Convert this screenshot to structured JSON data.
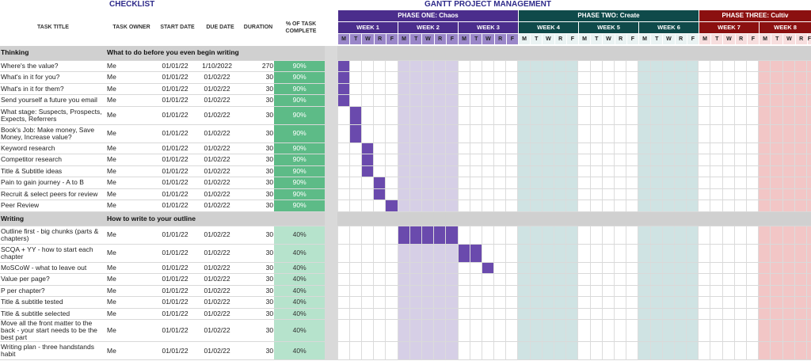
{
  "checklist_title": "CHECKLIST",
  "gantt_title": "GANTT PROJECT MANAGEMENT",
  "columns": {
    "task_title": "TASK TITLE",
    "task_owner": "TASK OWNER",
    "start_date": "START DATE",
    "due_date": "DUE DATE",
    "duration": "DURATION",
    "pct_complete": "% OF TASK COMPLETE"
  },
  "phases": [
    {
      "label": "PHASE ONE: Chaos",
      "color": "#4b2d8c"
    },
    {
      "label": "PHASE TWO: Create",
      "color": "#0f4a4a"
    },
    {
      "label": "PHASE THREE: Cultiv",
      "color": "#8b1010"
    }
  ],
  "weeks": [
    {
      "label": "WEEK 1",
      "phase": 0
    },
    {
      "label": "WEEK 2",
      "phase": 0
    },
    {
      "label": "WEEK 3",
      "phase": 0
    },
    {
      "label": "WEEK 4",
      "phase": 1
    },
    {
      "label": "WEEK 5",
      "phase": 1
    },
    {
      "label": "WEEK 6",
      "phase": 1
    },
    {
      "label": "WEEK 7",
      "phase": 2
    },
    {
      "label": "WEEK 8",
      "phase": 2
    }
  ],
  "day_letters": [
    "M",
    "T",
    "W",
    "R",
    "F"
  ],
  "sections": [
    {
      "name": "Thinking",
      "subtitle": "What to do before you even begin writing",
      "tasks": [
        {
          "title": "Where's the value?",
          "owner": "Me",
          "start": "01/01/22",
          "due": "1/10/2022",
          "duration": "270",
          "pct": "90%",
          "bar_start": 0,
          "bar_len": 1
        },
        {
          "title": "What's in it for you?",
          "owner": "Me",
          "start": "01/01/22",
          "due": "01/02/22",
          "duration": "30",
          "pct": "90%",
          "bar_start": 0,
          "bar_len": 1
        },
        {
          "title": "What's in it for them?",
          "owner": "Me",
          "start": "01/01/22",
          "due": "01/02/22",
          "duration": "30",
          "pct": "90%",
          "bar_start": 0,
          "bar_len": 1
        },
        {
          "title": "Send yourself a future you email",
          "owner": "Me",
          "start": "01/01/22",
          "due": "01/02/22",
          "duration": "30",
          "pct": "90%",
          "bar_start": 0,
          "bar_len": 1
        },
        {
          "title": "What stage: Suspects, Prospects, Expects, Referrers",
          "owner": "Me",
          "start": "01/01/22",
          "due": "01/02/22",
          "duration": "30",
          "pct": "90%",
          "bar_start": 1,
          "bar_len": 1,
          "tall": true
        },
        {
          "title": "Book's Job: Make money, Save Money, Increase value?",
          "owner": "Me",
          "start": "01/01/22",
          "due": "01/02/22",
          "duration": "30",
          "pct": "90%",
          "bar_start": 1,
          "bar_len": 1,
          "tall": true
        },
        {
          "title": "Keyword research",
          "owner": "Me",
          "start": "01/01/22",
          "due": "01/02/22",
          "duration": "30",
          "pct": "90%",
          "bar_start": 2,
          "bar_len": 1
        },
        {
          "title": "Competitor research",
          "owner": "Me",
          "start": "01/01/22",
          "due": "01/02/22",
          "duration": "30",
          "pct": "90%",
          "bar_start": 2,
          "bar_len": 1
        },
        {
          "title": "Title & Subtitle ideas",
          "owner": "Me",
          "start": "01/01/22",
          "due": "01/02/22",
          "duration": "30",
          "pct": "90%",
          "bar_start": 2,
          "bar_len": 1
        },
        {
          "title": "Pain to gain journey - A to B",
          "owner": "Me",
          "start": "01/01/22",
          "due": "01/02/22",
          "duration": "30",
          "pct": "90%",
          "bar_start": 3,
          "bar_len": 1
        },
        {
          "title": "Recruit & select peers for review",
          "owner": "Me",
          "start": "01/01/22",
          "due": "01/02/22",
          "duration": "30",
          "pct": "90%",
          "bar_start": 3,
          "bar_len": 1
        },
        {
          "title": "Peer Review",
          "owner": "Me",
          "start": "01/01/22",
          "due": "01/02/22",
          "duration": "30",
          "pct": "90%",
          "bar_start": 4,
          "bar_len": 1
        }
      ]
    },
    {
      "name": "Writing",
      "subtitle": "How to write to your outline",
      "tasks": [
        {
          "title": "Outline first - big chunks (parts & chapters)",
          "owner": "Me",
          "start": "01/01/22",
          "due": "01/02/22",
          "duration": "30",
          "pct": "40%",
          "bar_start": 5,
          "bar_len": 5,
          "tall": true
        },
        {
          "title": "SCQA + YY - how to start each chapter",
          "owner": "Me",
          "start": "01/01/22",
          "due": "01/02/22",
          "duration": "30",
          "pct": "40%",
          "bar_start": 10,
          "bar_len": 2,
          "tall": true
        },
        {
          "title": "MoSCoW - what to leave out",
          "owner": "Me",
          "start": "01/01/22",
          "due": "01/02/22",
          "duration": "30",
          "pct": "40%",
          "bar_start": 12,
          "bar_len": 1
        },
        {
          "title": "Value per page?",
          "owner": "Me",
          "start": "01/01/22",
          "due": "01/02/22",
          "duration": "30",
          "pct": "40%",
          "bar_start": -1,
          "bar_len": 0
        },
        {
          "title": "P per chapter?",
          "owner": "Me",
          "start": "01/01/22",
          "due": "01/02/22",
          "duration": "30",
          "pct": "40%",
          "bar_start": -1,
          "bar_len": 0
        },
        {
          "title": "Title & subtitle tested",
          "owner": "Me",
          "start": "01/01/22",
          "due": "01/02/22",
          "duration": "30",
          "pct": "40%",
          "bar_start": -1,
          "bar_len": 0
        },
        {
          "title": "Title & subtitle selected",
          "owner": "Me",
          "start": "01/01/22",
          "due": "01/02/22",
          "duration": "30",
          "pct": "40%",
          "bar_start": -1,
          "bar_len": 0
        },
        {
          "title": "Move all the front matter to the back - your start needs to be the best part",
          "owner": "Me",
          "start": "01/01/22",
          "due": "01/02/22",
          "duration": "30",
          "pct": "40%",
          "bar_start": -1,
          "bar_len": 0,
          "tall": true
        },
        {
          "title": "Writing plan - three handstands habit",
          "owner": "Me",
          "start": "01/01/22",
          "due": "01/02/22",
          "duration": "30",
          "pct": "40%",
          "bar_start": -1,
          "bar_len": 0,
          "tall": true
        }
      ]
    }
  ],
  "colors": {
    "bar": "#6a4aad",
    "pct_high": "#5dbb87",
    "pct_low": "#b6e3cc",
    "week_shade_lilac": "#d6cfe6",
    "week_shade_teal": "#cfe3e3",
    "week_shade_pink": "#f2c6c6"
  }
}
